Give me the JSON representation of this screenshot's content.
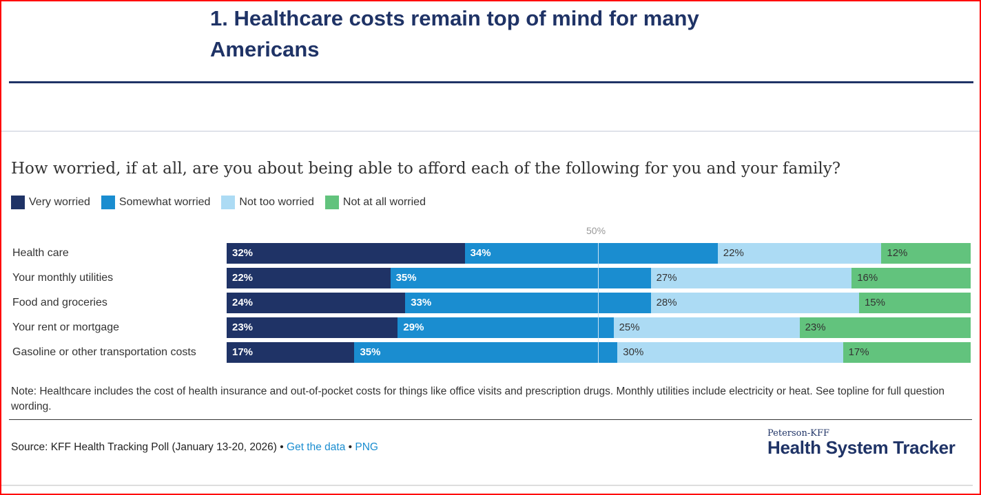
{
  "title": "1. Healthcare costs remain top of mind for many Americans",
  "chart_data": {
    "type": "bar",
    "orientation": "horizontal-stacked-100",
    "title": "How worried, if at all, are you about being able to afford each of the following for you and your family?",
    "reference_line": {
      "value": 50,
      "label": "50%"
    },
    "categories": [
      "Health care",
      "Your monthly utilities",
      "Food and groceries",
      "Your rent or mortgage",
      "Gasoline or other transportation costs"
    ],
    "series": [
      {
        "name": "Very worried",
        "color": "#1f3366",
        "text_color": "#ffffff",
        "values": [
          32,
          22,
          24,
          23,
          17
        ]
      },
      {
        "name": "Somewhat worried",
        "color": "#1a8dd0",
        "text_color": "#ffffff",
        "values": [
          34,
          35,
          33,
          29,
          35
        ]
      },
      {
        "name": "Not too worried",
        "color": "#acdbf4",
        "text_color": "#333333",
        "values": [
          22,
          27,
          28,
          25,
          30
        ]
      },
      {
        "name": "Not at all worried",
        "color": "#62c37d",
        "text_color": "#333333",
        "values": [
          12,
          16,
          15,
          23,
          17
        ]
      }
    ],
    "legend_position": "top-left"
  },
  "note": "Note: Healthcare includes the cost of health insurance and out-of-pocket costs for things like office visits and prescription drugs. Monthly utilities include electricity or heat. See topline for full question wording.",
  "source": {
    "text": "Source: KFF Health Tracking Poll (January 13-20, 2026) •",
    "link1": "Get the data",
    "sep": "•",
    "link2": "PNG"
  },
  "logo": {
    "line1": "Peterson-KFF",
    "line2": "Health System Tracker"
  }
}
